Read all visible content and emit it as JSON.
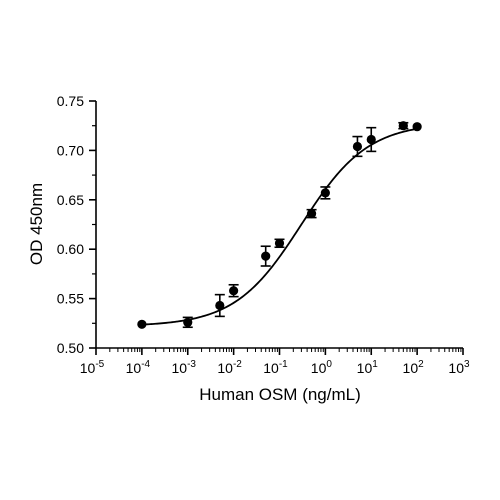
{
  "chart_data": {
    "type": "scatter",
    "title": "",
    "xlabel": "Human OSM (ng/mL)",
    "ylabel": "OD 450nm",
    "x_scale": "log",
    "xlim": [
      1e-05,
      1000
    ],
    "ylim": [
      0.5,
      0.75
    ],
    "x_ticks": [
      {
        "base": "10",
        "exp": "-5"
      },
      {
        "base": "10",
        "exp": "-4"
      },
      {
        "base": "10",
        "exp": "-3"
      },
      {
        "base": "10",
        "exp": "-2"
      },
      {
        "base": "10",
        "exp": "-1"
      },
      {
        "base": "10",
        "exp": "0"
      },
      {
        "base": "10",
        "exp": "1"
      },
      {
        "base": "10",
        "exp": "2"
      },
      {
        "base": "10",
        "exp": "3"
      }
    ],
    "y_ticks": [
      "0.50",
      "0.55",
      "0.60",
      "0.65",
      "0.70",
      "0.75"
    ],
    "grid": false,
    "series": [
      {
        "points": [
          {
            "x": 0.0001,
            "y": 0.524,
            "err": 0.001
          },
          {
            "x": 0.001,
            "y": 0.526,
            "err": 0.005
          },
          {
            "x": 0.005,
            "y": 0.543,
            "err": 0.011
          },
          {
            "x": 0.01,
            "y": 0.558,
            "err": 0.006
          },
          {
            "x": 0.05,
            "y": 0.593,
            "err": 0.01
          },
          {
            "x": 0.1,
            "y": 0.606,
            "err": 0.004
          },
          {
            "x": 0.5,
            "y": 0.636,
            "err": 0.004
          },
          {
            "x": 1,
            "y": 0.657,
            "err": 0.006
          },
          {
            "x": 5,
            "y": 0.704,
            "err": 0.01
          },
          {
            "x": 10,
            "y": 0.711,
            "err": 0.012
          },
          {
            "x": 50,
            "y": 0.725,
            "err": 0.003
          },
          {
            "x": 100,
            "y": 0.724,
            "err": 0.001
          }
        ],
        "fit_curve": {
          "model": "4PL",
          "bottom": 0.522,
          "top": 0.728,
          "ec50": 0.3,
          "hill": 0.6
        }
      }
    ],
    "colors": {
      "marker": "#000000",
      "line": "#000000",
      "axis": "#000000"
    }
  }
}
